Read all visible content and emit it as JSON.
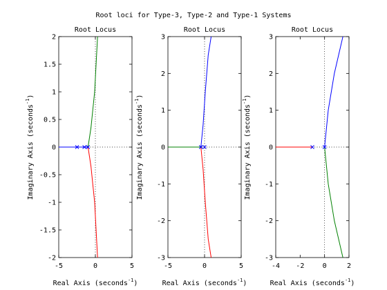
{
  "figure": {
    "title": "Root loci for Type-3, Type-2 and Type-1 Systems"
  },
  "chart_data": [
    {
      "type": "line",
      "title": "Root Locus",
      "xlabel": "Real Axis (seconds",
      "xlabel_sup": "-1",
      "xlabel_close": ")",
      "ylabel": "Imaginary Axis (seconds",
      "ylabel_sup": "-1",
      "ylabel_close": ")",
      "xlim": [
        -5,
        5
      ],
      "ylim": [
        -2,
        2
      ],
      "xticks": [
        -5,
        0,
        5
      ],
      "xtick_labels": [
        "-5",
        "0",
        "5"
      ],
      "yticks": [
        -2,
        -1.5,
        -1,
        -0.5,
        0,
        0.5,
        1,
        1.5,
        2
      ],
      "ytick_labels": [
        "-2",
        "-1.5",
        "-1",
        "-0.5",
        "0",
        "0.5",
        "1",
        "1.5",
        "2"
      ],
      "poles": [
        [
          -1,
          0
        ],
        [
          -1.5,
          0
        ],
        [
          -2.5,
          0
        ]
      ],
      "series": [
        {
          "color": "#0000ff",
          "points": [
            [
              -5,
              0
            ],
            [
              -1,
              0
            ]
          ]
        },
        {
          "color": "#008000",
          "points": [
            [
              -1,
              0
            ],
            [
              -0.6,
              0.35
            ],
            [
              -0.1,
              1.0
            ],
            [
              0.3,
              2.0
            ]
          ]
        },
        {
          "color": "#ff0000",
          "points": [
            [
              -1,
              0
            ],
            [
              -0.6,
              -0.35
            ],
            [
              -0.1,
              -1.0
            ],
            [
              0.3,
              -2.0
            ]
          ]
        }
      ]
    },
    {
      "type": "line",
      "title": "Root Locus",
      "xlabel": "Real Axis (seconds",
      "xlabel_sup": "-1",
      "xlabel_close": ")",
      "ylabel": "Imaginary Axis (seconds",
      "ylabel_sup": "-1",
      "ylabel_close": ")",
      "xlim": [
        -5,
        5
      ],
      "ylim": [
        -3,
        3
      ],
      "xticks": [
        -5,
        0,
        5
      ],
      "xtick_labels": [
        "-5",
        "0",
        "5"
      ],
      "yticks": [
        -3,
        -2,
        -1,
        0,
        1,
        2,
        3
      ],
      "ytick_labels": [
        "-3",
        "-2",
        "-1",
        "0",
        "1",
        "2",
        "3"
      ],
      "poles": [
        [
          -0.5,
          0
        ],
        [
          0,
          0
        ]
      ],
      "series": [
        {
          "color": "#008000",
          "points": [
            [
              -5,
              0
            ],
            [
              -0.5,
              0
            ]
          ]
        },
        {
          "color": "#0000ff",
          "points": [
            [
              -0.5,
              0
            ],
            [
              -0.2,
              0.6
            ],
            [
              0.1,
              1.5
            ],
            [
              0.5,
              2.5
            ],
            [
              0.9,
              3.0
            ]
          ]
        },
        {
          "color": "#ff0000",
          "points": [
            [
              -0.5,
              0
            ],
            [
              -0.2,
              -0.6
            ],
            [
              0.1,
              -1.5
            ],
            [
              0.5,
              -2.5
            ],
            [
              0.9,
              -3.0
            ]
          ]
        }
      ]
    },
    {
      "type": "line",
      "title": "Root Locus",
      "xlabel": "Real Axis (seconds",
      "xlabel_sup": "-1",
      "xlabel_close": ")",
      "ylabel": "Imaginary Axis (seconds",
      "ylabel_sup": "-1",
      "ylabel_close": ")",
      "xlim": [
        -4,
        2
      ],
      "ylim": [
        -3,
        3
      ],
      "xticks": [
        -4,
        -2,
        0,
        2
      ],
      "xtick_labels": [
        "-4",
        "-2",
        "0",
        "2"
      ],
      "yticks": [
        -3,
        -2,
        -1,
        0,
        1,
        2,
        3
      ],
      "ytick_labels": [
        "-3",
        "-2",
        "-1",
        "0",
        "1",
        "2",
        "3"
      ],
      "poles": [
        [
          -1,
          0
        ],
        [
          0,
          0
        ]
      ],
      "series": [
        {
          "color": "#ff0000",
          "points": [
            [
              -4,
              0
            ],
            [
              -1,
              0
            ]
          ]
        },
        {
          "color": "#0000ff",
          "points": [
            [
              0,
              0
            ],
            [
              0.3,
              1.0
            ],
            [
              0.8,
              2.0
            ],
            [
              1.5,
              3.0
            ]
          ]
        },
        {
          "color": "#008000",
          "points": [
            [
              0,
              0
            ],
            [
              0.3,
              -1.0
            ],
            [
              0.8,
              -2.0
            ],
            [
              1.5,
              -3.0
            ]
          ]
        }
      ]
    }
  ]
}
